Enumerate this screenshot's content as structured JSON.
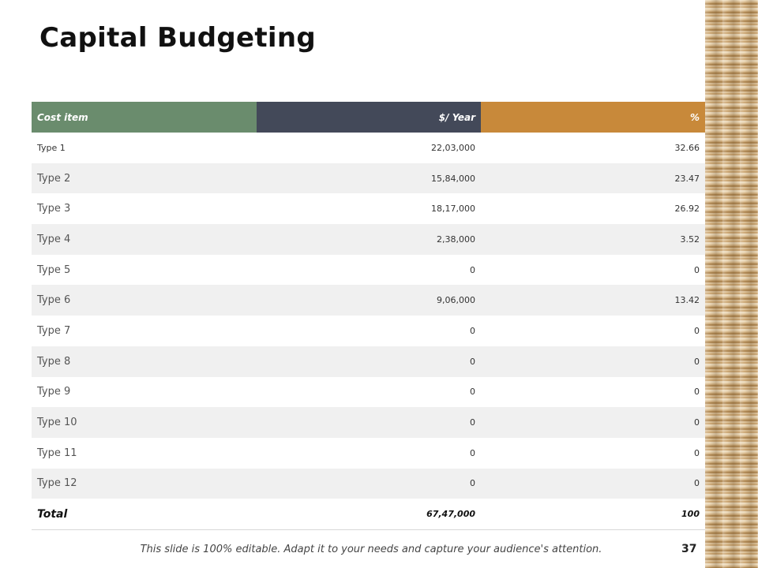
{
  "slide": {
    "title": "Capital Budgeting",
    "footer_note": "This slide is 100% editable. Adapt it to your needs and capture your audience's attention.",
    "page_number": "37"
  },
  "table": {
    "headers": [
      "Cost item",
      "$/ Year",
      "%"
    ],
    "header_colors": [
      "#6a8c6d",
      "#434959",
      "#c8893a"
    ],
    "rows": [
      {
        "name": "Type 1",
        "amount": "22,03,000",
        "percent": "32.66"
      },
      {
        "name": "Type 2",
        "amount": "15,84,000",
        "percent": "23.47"
      },
      {
        "name": "Type 3",
        "amount": "18,17,000",
        "percent": "26.92"
      },
      {
        "name": "Type 4",
        "amount": "2,38,000",
        "percent": "3.52"
      },
      {
        "name": "Type 5",
        "amount": "0",
        "percent": "0"
      },
      {
        "name": "Type 6",
        "amount": "9,06,000",
        "percent": "13.42"
      },
      {
        "name": "Type 7",
        "amount": "0",
        "percent": "0"
      },
      {
        "name": "Type 8",
        "amount": "0",
        "percent": "0"
      },
      {
        "name": "Type 9",
        "amount": "0",
        "percent": "0"
      },
      {
        "name": "Type 10",
        "amount": "0",
        "percent": "0"
      },
      {
        "name": "Type 11",
        "amount": "0",
        "percent": "0"
      },
      {
        "name": "Type 12",
        "amount": "0",
        "percent": "0"
      }
    ],
    "total": {
      "name": "Total",
      "amount": "67,47,000",
      "percent": "100"
    }
  }
}
